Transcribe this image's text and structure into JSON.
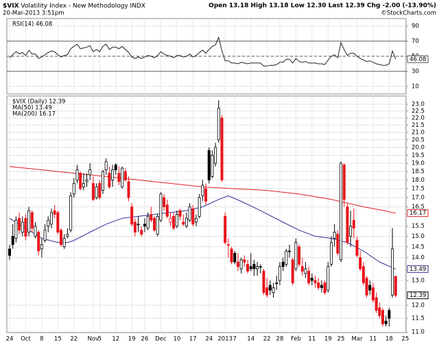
{
  "header": {
    "symbol": "$VIX",
    "name": "Volatility Index - New Methodology",
    "exchange": "INDX",
    "quote": "Open 13.18 High 13.18 Low 12.30 Last 12.39 Chg -2.00 (-13.90%)",
    "timestamp": "20-Mar-2013 3:51pm",
    "credit": "©StockCharts.com"
  },
  "chart_data": [
    {
      "type": "line",
      "legend": "RSI(14) 46.08",
      "color": "#222222",
      "xlim": [
        -0.85,
        123.25
      ],
      "ylim": [
        0,
        100
      ],
      "yticks": [
        90,
        70,
        50,
        30,
        10
      ],
      "bands": [
        70,
        30
      ],
      "midline": 50,
      "values": [
        48,
        52,
        56,
        53,
        55,
        51,
        58,
        53,
        53,
        47,
        49,
        52,
        55,
        57,
        56,
        52,
        49,
        51,
        52,
        60,
        63,
        66,
        60,
        61,
        62,
        64,
        56,
        59,
        56,
        63,
        66,
        59,
        62,
        62,
        60,
        63,
        59,
        55,
        49,
        47,
        49,
        47,
        49,
        51,
        50,
        48,
        51,
        56,
        53,
        51,
        50,
        48,
        51,
        51,
        49,
        50,
        53,
        49,
        51,
        55,
        58,
        54,
        59,
        63,
        65,
        75,
        57,
        44,
        44,
        41,
        41,
        40,
        42,
        41,
        40,
        41,
        41,
        41,
        41,
        37,
        37,
        38,
        38,
        39,
        42,
        42,
        46,
        46,
        41,
        47,
        43,
        42,
        43,
        41,
        41,
        41,
        40,
        40,
        39,
        45,
        50,
        52,
        48,
        68,
        59,
        51,
        54,
        54,
        50,
        47,
        45,
        43,
        44,
        42,
        40,
        39,
        38,
        38,
        40,
        57,
        46.08
      ],
      "marker": {
        "value": 46.08,
        "label": "46.08"
      }
    },
    {
      "type": "candlestick",
      "legend": "$VIX (Daily) 12.39",
      "up_color": "#000000",
      "down_color": "#e8141b",
      "xlim": [
        -0.85,
        123.25
      ],
      "ylim": [
        10.98,
        23.62
      ],
      "log": true,
      "grid": true,
      "xticks": [
        {
          "value": 0,
          "label": "24"
        },
        {
          "value": 5,
          "label": "Oct"
        },
        {
          "value": 10,
          "label": "8"
        },
        {
          "value": 15,
          "label": "15"
        },
        {
          "value": 20,
          "label": "22"
        },
        {
          "value": 26,
          "label": "Nov"
        },
        {
          "value": 28,
          "label": "5"
        },
        {
          "value": 33,
          "label": "12"
        },
        {
          "value": 38,
          "label": "19"
        },
        {
          "value": 42,
          "label": "26"
        },
        {
          "value": 47,
          "label": "Dec"
        },
        {
          "value": 52,
          "label": "10"
        },
        {
          "value": 57,
          "label": "17"
        },
        {
          "value": 62,
          "label": "24"
        },
        {
          "value": 67,
          "label": "2013"
        },
        {
          "value": 70,
          "label": "7"
        },
        {
          "value": 75,
          "label": "14"
        },
        {
          "value": 80,
          "label": "22"
        },
        {
          "value": 84,
          "label": "28"
        },
        {
          "value": 89,
          "label": "Feb"
        },
        {
          "value": 94,
          "label": "11"
        },
        {
          "value": 99,
          "label": "19"
        },
        {
          "value": 103,
          "label": "25"
        },
        {
          "value": 108,
          "label": "Mar"
        },
        {
          "value": 113,
          "label": "11"
        },
        {
          "value": 118,
          "label": "18"
        },
        {
          "value": 123,
          "label": "25"
        }
      ],
      "yticks": [
        {
          "value": 23,
          "label": "23.0"
        },
        22.5,
        {
          "value": 22,
          "label": "22.0"
        },
        21.5,
        {
          "value": 21,
          "label": "21.0"
        },
        20.5,
        {
          "value": 20,
          "label": "20.0"
        },
        19.5,
        {
          "value": 19,
          "label": "19.0"
        },
        18.5,
        {
          "value": 18,
          "label": "18.0"
        },
        17.5,
        {
          "value": 17,
          "label": "17.0"
        },
        16.5,
        15.5,
        {
          "value": 15,
          "label": "15.0"
        },
        14.5,
        {
          "value": 14,
          "label": "14.0"
        },
        {
          "value": 13,
          "label": "13.0"
        },
        {
          "value": 12,
          "label": "12.0"
        },
        11.5,
        {
          "value": 11,
          "label": "11.0"
        }
      ],
      "open": [
        14.4,
        15.0,
        14.9,
        15.9,
        15.2,
        15.9,
        15.2,
        16.2,
        15.0,
        15.2,
        14.4,
        14.8,
        15.5,
        15.6,
        16.3,
        16.2,
        15.3,
        14.5,
        15.0,
        15.3,
        17.2,
        18.0,
        18.4,
        17.6,
        17.9,
        18.3,
        17.8,
        17.0,
        17.8,
        17.4,
        18.6,
        18.4,
        18.0,
        18.9,
        18.4,
        17.6,
        18.5,
        17.9,
        16.5,
        15.7,
        15.6,
        15.3,
        15.6,
        15.4,
        16.1,
        15.9,
        15.1,
        15.8,
        17.0,
        16.6,
        15.7,
        16.0,
        15.5,
        16.3,
        15.7,
        15.5,
        15.8,
        16.4,
        15.7,
        16.0,
        17.1,
        17.5,
        19.8,
        18.2,
        19.0,
        20.5,
        22.0,
        16.0,
        14.6,
        14.4,
        14.2,
        13.8,
        13.5,
        13.9,
        13.7,
        13.6,
        13.7,
        13.5,
        13.6,
        13.4,
        12.7,
        12.8,
        12.5,
        12.9,
        13.0,
        13.8,
        13.7,
        14.3,
        13.9,
        13.5,
        14.5,
        13.6,
        13.3,
        13.4,
        13.1,
        13.0,
        12.9,
        12.8,
        12.9,
        12.6,
        13.7,
        14.9,
        15.1,
        13.9,
        18.9,
        16.5,
        15.0,
        15.8,
        14.8,
        14.0,
        13.6,
        13.1,
        12.8,
        12.7,
        12.3,
        11.9,
        11.8,
        11.4,
        11.8,
        12.4,
        13.18
      ],
      "high": [
        14.6,
        15.6,
        16.0,
        16.2,
        16.0,
        16.1,
        16.5,
        16.3,
        15.7,
        15.3,
        14.9,
        15.6,
        16.0,
        16.4,
        16.6,
        16.3,
        15.4,
        15.1,
        15.4,
        17.3,
        18.1,
        18.9,
        18.5,
        18.4,
        18.4,
        19.0,
        18.2,
        17.8,
        18.0,
        18.6,
        19.3,
        18.8,
        18.9,
        19.0,
        18.8,
        18.8,
        18.7,
        18.2,
        16.7,
        15.9,
        16.0,
        15.5,
        15.9,
        16.2,
        16.5,
        16.0,
        16.1,
        17.3,
        17.2,
        16.9,
        16.2,
        16.2,
        16.3,
        16.4,
        16.1,
        16.2,
        16.7,
        16.6,
        16.1,
        17.2,
        18.0,
        17.8,
        20.0,
        19.8,
        20.3,
        23.3,
        22.2,
        16.2,
        14.9,
        14.5,
        14.3,
        14.2,
        14.0,
        14.1,
        13.9,
        14.2,
        13.9,
        13.8,
        13.7,
        13.5,
        13.1,
        13.0,
        12.9,
        13.2,
        13.8,
        14.0,
        14.4,
        14.6,
        14.0,
        14.9,
        14.6,
        14.0,
        13.8,
        13.6,
        13.3,
        13.2,
        13.1,
        13.0,
        13.0,
        13.8,
        15.0,
        15.6,
        15.3,
        19.1,
        19.0,
        16.7,
        16.3,
        16.4,
        15.0,
        14.3,
        13.8,
        13.2,
        13.0,
        12.9,
        12.5,
        12.1,
        11.9,
        11.6,
        11.9,
        15.4,
        13.18
      ],
      "low": [
        13.9,
        14.4,
        14.7,
        15.1,
        15.0,
        14.8,
        15.0,
        15.2,
        14.9,
        14.1,
        14.0,
        14.7,
        15.2,
        15.4,
        15.9,
        15.1,
        14.5,
        14.4,
        14.9,
        15.2,
        17.0,
        17.8,
        17.4,
        17.4,
        17.6,
        18.0,
        16.8,
        16.9,
        16.9,
        17.2,
        18.3,
        17.5,
        17.6,
        18.3,
        17.7,
        17.5,
        17.9,
        16.8,
        15.5,
        15.0,
        15.2,
        15.0,
        15.2,
        15.3,
        15.7,
        15.2,
        15.0,
        15.7,
        16.3,
        15.9,
        15.5,
        15.3,
        15.4,
        15.8,
        15.5,
        15.4,
        15.7,
        15.5,
        15.5,
        15.9,
        16.8,
        16.6,
        17.8,
        18.1,
        18.8,
        20.3,
        17.9,
        14.6,
        14.0,
        13.7,
        13.7,
        13.4,
        13.3,
        13.6,
        13.3,
        13.4,
        13.2,
        13.2,
        13.3,
        12.4,
        12.3,
        12.4,
        12.3,
        12.6,
        12.8,
        13.4,
        13.6,
        14.0,
        12.8,
        13.4,
        13.6,
        13.2,
        13.1,
        12.8,
        12.8,
        12.7,
        12.6,
        12.5,
        12.4,
        12.5,
        13.6,
        14.5,
        14.1,
        13.8,
        16.5,
        14.6,
        14.5,
        14.9,
        14.0,
        13.4,
        12.8,
        12.3,
        12.4,
        12.1,
        11.7,
        11.5,
        11.2,
        11.2,
        11.2,
        12.3,
        12.3
      ],
      "close": [
        14.1,
        14.6,
        15.8,
        15.3,
        15.7,
        15.0,
        16.3,
        15.4,
        15.5,
        14.3,
        14.6,
        15.3,
        15.8,
        16.2,
        16.1,
        15.2,
        14.6,
        14.9,
        15.1,
        17.1,
        17.8,
        18.6,
        17.5,
        17.8,
        18.0,
        18.6,
        16.9,
        17.6,
        17.0,
        18.5,
        19.1,
        17.6,
        18.6,
        18.6,
        17.9,
        18.7,
        18.0,
        17.0,
        15.6,
        15.2,
        15.6,
        15.1,
        15.5,
        16.0,
        15.8,
        15.3,
        16.0,
        17.2,
        16.5,
        16.0,
        15.9,
        15.4,
        16.1,
        16.0,
        15.6,
        15.9,
        16.5,
        15.6,
        15.9,
        17.0,
        17.7,
        16.8,
        18.0,
        19.5,
        20.0,
        22.7,
        18.0,
        14.7,
        14.6,
        13.8,
        13.8,
        13.6,
        13.9,
        13.8,
        13.4,
        13.5,
        13.5,
        13.6,
        13.6,
        12.5,
        12.4,
        12.6,
        12.7,
        12.9,
        13.6,
        13.6,
        14.3,
        14.3,
        12.9,
        14.7,
        13.7,
        13.4,
        13.5,
        12.9,
        13.0,
        12.9,
        12.7,
        12.7,
        12.5,
        13.6,
        14.7,
        15.2,
        14.2,
        19.0,
        16.9,
        14.7,
        15.5,
        15.4,
        14.1,
        13.5,
        12.9,
        12.4,
        12.6,
        12.2,
        11.8,
        11.6,
        11.3,
        11.3,
        11.5,
        14.4,
        12.39
      ],
      "lines": [
        {
          "name": "MA(50) 13.49",
          "color": "#2e2e96",
          "x": [
            0,
            5,
            10,
            15,
            18,
            20,
            25,
            30,
            35,
            40,
            45,
            50,
            55,
            60,
            65,
            68,
            72,
            78,
            85,
            90,
            95,
            100,
            105,
            110,
            115,
            120
          ],
          "values": [
            15.9,
            15.4,
            14.9,
            14.7,
            14.7,
            14.8,
            15.2,
            15.6,
            15.9,
            16.0,
            16.1,
            16.2,
            16.3,
            16.5,
            16.9,
            17.1,
            16.8,
            16.3,
            15.7,
            15.3,
            15.0,
            14.9,
            14.7,
            14.3,
            13.8,
            13.49
          ]
        },
        {
          "name": "MA(200) 16.17",
          "color": "#e02020",
          "x": [
            0,
            10,
            20,
            30,
            40,
            50,
            60,
            70,
            80,
            90,
            100,
            105,
            110,
            115,
            120
          ],
          "values": [
            18.8,
            18.6,
            18.4,
            18.2,
            18.0,
            17.8,
            17.6,
            17.5,
            17.4,
            17.2,
            16.9,
            16.7,
            16.5,
            16.35,
            16.17
          ]
        }
      ],
      "markers": [
        {
          "value": 16.17,
          "label": "16.17",
          "color": "#e02020"
        },
        {
          "value": 13.49,
          "label": "13.49",
          "color": "#2e2e96"
        },
        {
          "value": 12.39,
          "label": "12.39",
          "color": "#000000"
        }
      ]
    }
  ]
}
